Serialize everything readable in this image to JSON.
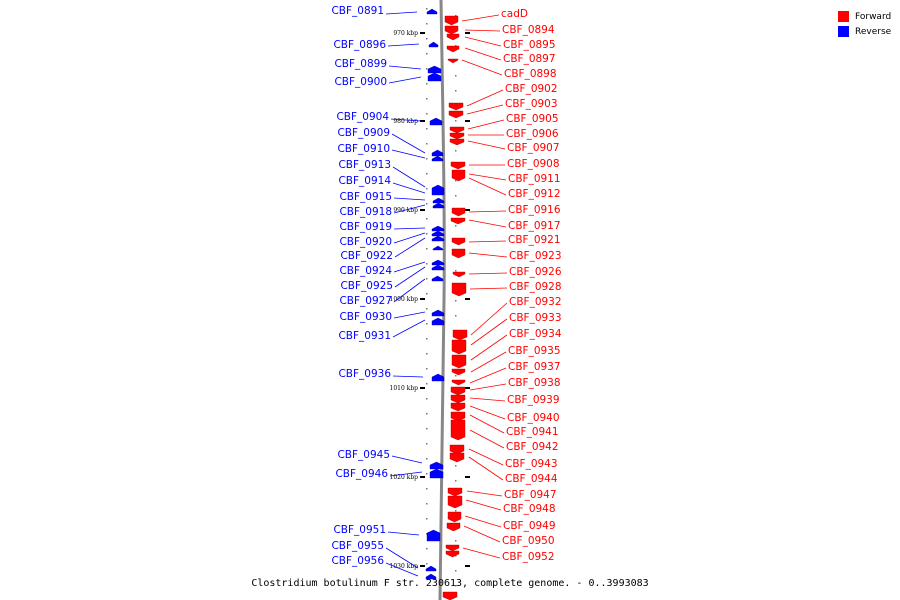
{
  "legend": {
    "forward_label": "Forward",
    "reverse_label": "Reverse",
    "forward_color": "#ff0000",
    "reverse_color": "#0000ff"
  },
  "caption": "Clostridium botulinum F str. 230613, complete genome. - 0..3993083",
  "tick_marks": [
    "970 kbp",
    "980 kbp",
    "990 kbp",
    "1000 kbp",
    "1010 kbp",
    "1020 kbp",
    "1030 kbp"
  ],
  "reverse_labels": [
    "CBF_0891",
    "CBF_0896",
    "CBF_0899",
    "CBF_0900",
    "CBF_0904",
    "CBF_0909",
    "CBF_0910",
    "CBF_0913",
    "CBF_0914",
    "CBF_0915",
    "CBF_0918",
    "CBF_0919",
    "CBF_0920",
    "CBF_0922",
    "CBF_0924",
    "CBF_0925",
    "CBF_0927",
    "CBF_0930",
    "CBF_0931",
    "CBF_0936",
    "CBF_0945",
    "CBF_0946",
    "CBF_0951",
    "CBF_0955",
    "CBF_0956"
  ],
  "forward_labels": [
    "cadD",
    "CBF_0894",
    "CBF_0895",
    "CBF_0897",
    "CBF_0898",
    "CBF_0902",
    "CBF_0903",
    "CBF_0905",
    "CBF_0906",
    "CBF_0907",
    "CBF_0908",
    "CBF_0911",
    "CBF_0912",
    "CBF_0916",
    "CBF_0917",
    "CBF_0921",
    "CBF_0923",
    "CBF_0926",
    "CBF_0928",
    "CBF_0932",
    "CBF_0933",
    "CBF_0934",
    "CBF_0935",
    "CBF_0937",
    "CBF_0938",
    "CBF_0939",
    "CBF_0940",
    "CBF_0941",
    "CBF_0942",
    "CBF_0943",
    "CBF_0944",
    "CBF_0947",
    "CBF_0948",
    "CBF_0949",
    "CBF_0950",
    "CBF_0952"
  ]
}
